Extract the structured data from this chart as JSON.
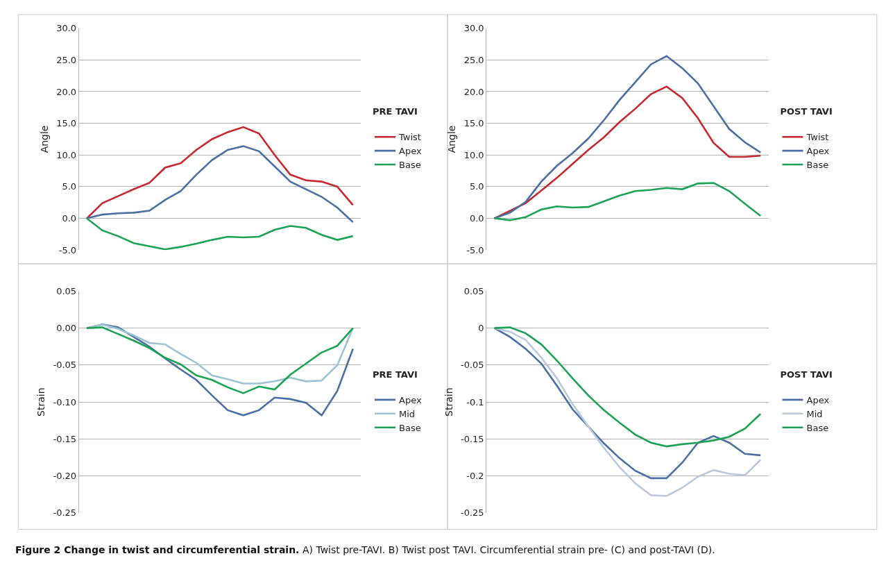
{
  "chart_data": [
    {
      "type": "line",
      "title": "Figure 2 Change in twist and circumferential strain.",
      "annotations": [
        "A) Twist pre-TAVI. B) Twist post TAVI. Circumferential strain pre- (C) and post-TAVI (D)."
      ],
      "ylabel": "Angle",
      "legend_title": "PRE TAVI",
      "legend": "right",
      "grid": "y",
      "tick_labels": "y",
      "marker": "none",
      "line_style": "solid",
      "categories": [
        null,
        null,
        null,
        null,
        null,
        null,
        null,
        null,
        null,
        null,
        null,
        null,
        null,
        null,
        null,
        null,
        null,
        null
      ],
      "ylim": [
        -5,
        30
      ],
      "yticks": [
        {
          "value": -5,
          "label": "-5.0"
        },
        {
          "value": 0,
          "label": "0.0"
        },
        {
          "value": 5,
          "label": "5.0"
        },
        {
          "value": 10,
          "label": "10.0"
        },
        {
          "value": 15,
          "label": "15.0"
        },
        {
          "value": 20,
          "label": "20.0"
        },
        {
          "value": 25,
          "label": "25.0"
        },
        {
          "value": 30,
          "label": "30.0"
        }
      ],
      "series": [
        {
          "name": "Twist",
          "color": "#c8282d",
          "values": [
            0,
            2.4,
            3.5,
            4.6,
            5.6,
            8.0,
            8.7,
            10.8,
            12.5,
            13.6,
            14.4,
            13.4,
            10.0,
            6.9,
            6.0,
            5.8,
            5.0,
            2.1
          ]
        },
        {
          "name": "Apex",
          "color": "#4a6fa5",
          "values": [
            0,
            0.6,
            0.8,
            0.9,
            1.2,
            2.9,
            4.3,
            6.9,
            9.2,
            10.8,
            11.4,
            10.6,
            8.2,
            5.8,
            4.6,
            3.4,
            1.7,
            -0.6
          ]
        },
        {
          "name": "Base",
          "color": "#1aa352",
          "values": [
            0,
            -1.9,
            -2.8,
            -3.9,
            -4.4,
            -4.9,
            -4.5,
            -4.0,
            -3.4,
            -2.9,
            -3.0,
            -2.9,
            -1.8,
            -1.2,
            -1.5,
            -2.6,
            -3.4,
            -2.8
          ]
        }
      ]
    },
    {
      "type": "line",
      "ylabel": "Angle",
      "legend_title": "POST TAVI",
      "legend": "right",
      "grid": "y",
      "tick_labels": "y",
      "marker": "none",
      "line_style": "solid",
      "categories": [
        null,
        null,
        null,
        null,
        null,
        null,
        null,
        null,
        null,
        null,
        null,
        null,
        null,
        null,
        null,
        null,
        null,
        null
      ],
      "ylim": [
        -5,
        30
      ],
      "yticks": [
        {
          "value": -5,
          "label": "-5.0"
        },
        {
          "value": 0,
          "label": "0.0"
        },
        {
          "value": 5,
          "label": "5.0"
        },
        {
          "value": 10,
          "label": "10.0"
        },
        {
          "value": 15,
          "label": "15.0"
        },
        {
          "value": 20,
          "label": "20.0"
        },
        {
          "value": 25,
          "label": "25.0"
        },
        {
          "value": 30,
          "label": "30.0"
        }
      ],
      "series": [
        {
          "name": "Twist",
          "color": "#c8282d",
          "values": [
            0,
            1.2,
            2.4,
            4.4,
            6.4,
            8.6,
            10.8,
            12.8,
            15.2,
            17.3,
            19.6,
            20.8,
            19.0,
            15.8,
            11.9,
            9.7,
            9.7,
            9.9
          ]
        },
        {
          "name": "Apex",
          "color": "#4a6fa5",
          "values": [
            0,
            0.9,
            2.6,
            5.8,
            8.3,
            10.3,
            12.6,
            15.5,
            18.7,
            21.5,
            24.3,
            25.6,
            23.7,
            21.3,
            17.7,
            14.1,
            12.0,
            10.4
          ]
        },
        {
          "name": "Base",
          "color": "#1aa352",
          "values": [
            0,
            -0.3,
            0.2,
            1.4,
            1.9,
            1.7,
            1.8,
            2.7,
            3.6,
            4.3,
            4.5,
            4.8,
            4.6,
            5.5,
            5.6,
            4.3,
            2.3,
            0.4
          ]
        }
      ]
    },
    {
      "type": "line",
      "ylabel": "Strain",
      "legend_title": "PRE TAVI",
      "legend": "right",
      "grid": "y",
      "tick_labels": "y",
      "marker": "none",
      "line_style": "solid",
      "categories": [
        null,
        null,
        null,
        null,
        null,
        null,
        null,
        null,
        null,
        null,
        null,
        null,
        null,
        null,
        null,
        null,
        null,
        null
      ],
      "ylim": [
        -0.25,
        0.05
      ],
      "yticks": [
        {
          "value": -0.25,
          "label": "-0.25"
        },
        {
          "value": -0.2,
          "label": "-0.20"
        },
        {
          "value": -0.15,
          "label": "-0.15"
        },
        {
          "value": -0.1,
          "label": "-0.10"
        },
        {
          "value": -0.05,
          "label": "-0.05"
        },
        {
          "value": 0,
          "label": "0.00"
        },
        {
          "value": 0.05,
          "label": "0.05"
        }
      ],
      "series": [
        {
          "name": "Apex",
          "color": "#4a6fa5",
          "values": [
            0,
            0.005,
            0.001,
            -0.012,
            -0.025,
            -0.041,
            -0.056,
            -0.07,
            -0.091,
            -0.111,
            -0.118,
            -0.111,
            -0.094,
            -0.096,
            -0.101,
            -0.118,
            -0.085,
            -0.028
          ]
        },
        {
          "name": "Mid",
          "color": "#9cc3d5",
          "values": [
            0,
            0.005,
            -0.001,
            -0.01,
            -0.02,
            -0.022,
            -0.035,
            -0.047,
            -0.064,
            -0.069,
            -0.075,
            -0.075,
            -0.072,
            -0.067,
            -0.072,
            -0.071,
            -0.05,
            0
          ]
        },
        {
          "name": "Base",
          "color": "#1aa352",
          "values": [
            0,
            0.001,
            -0.008,
            -0.017,
            -0.027,
            -0.04,
            -0.049,
            -0.064,
            -0.07,
            -0.08,
            -0.088,
            -0.079,
            -0.083,
            -0.063,
            -0.048,
            -0.033,
            -0.024,
            0
          ]
        }
      ]
    },
    {
      "type": "line",
      "ylabel": "Strain",
      "legend_title": "POST TAVI",
      "legend": "right",
      "grid": "y",
      "tick_labels": "y",
      "marker": "none",
      "line_style": "solid",
      "categories": [
        null,
        null,
        null,
        null,
        null,
        null,
        null,
        null,
        null,
        null,
        null,
        null,
        null,
        null,
        null,
        null,
        null,
        null
      ],
      "ylim": [
        -0.25,
        0.05
      ],
      "yticks": [
        -0.25,
        -0.2,
        -0.15,
        -0.1,
        -0.05,
        0,
        0.05
      ],
      "series": [
        {
          "name": "Apex",
          "color": "#4a6fa5",
          "values": [
            0,
            -0.012,
            -0.028,
            -0.048,
            -0.078,
            -0.11,
            -0.133,
            -0.156,
            -0.176,
            -0.193,
            -0.203,
            -0.203,
            -0.182,
            -0.155,
            -0.146,
            -0.155,
            -0.17,
            -0.172
          ]
        },
        {
          "name": "Mid",
          "color": "#b9c8de",
          "values": [
            0,
            -0.005,
            -0.016,
            -0.04,
            -0.068,
            -0.103,
            -0.133,
            -0.162,
            -0.188,
            -0.21,
            -0.226,
            -0.227,
            -0.216,
            -0.201,
            -0.192,
            -0.197,
            -0.199,
            -0.178
          ]
        },
        {
          "name": "Base",
          "color": "#1aa352",
          "values": [
            0,
            0.001,
            -0.007,
            -0.022,
            -0.044,
            -0.068,
            -0.091,
            -0.111,
            -0.128,
            -0.144,
            -0.155,
            -0.16,
            -0.157,
            -0.155,
            -0.152,
            -0.147,
            -0.136,
            -0.116
          ]
        }
      ]
    }
  ]
}
